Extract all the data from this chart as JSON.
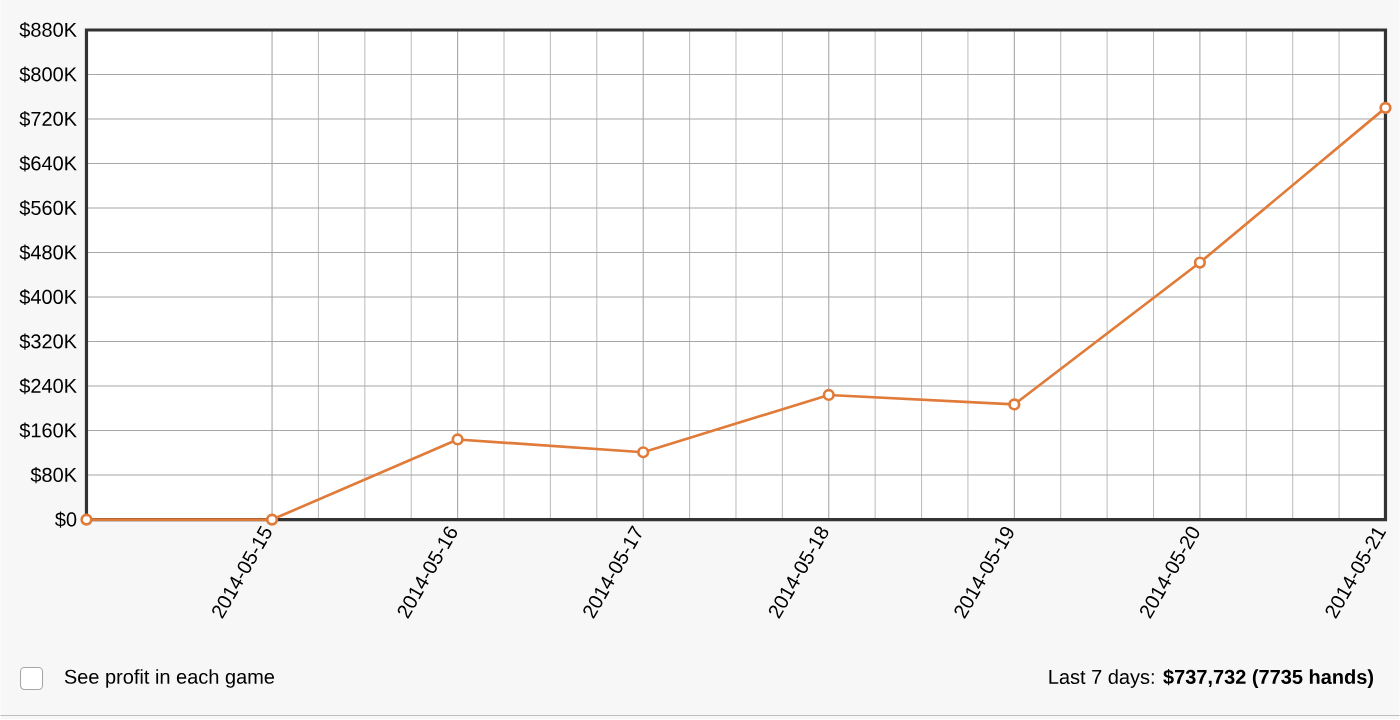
{
  "chart_data": {
    "type": "line",
    "x": [
      "2014-05-14",
      "2014-05-15",
      "2014-05-16",
      "2014-05-17",
      "2014-05-18",
      "2014-05-19",
      "2014-05-20",
      "2014-05-21"
    ],
    "series": [
      {
        "color": "#e07b39",
        "values": [
          0,
          0,
          144000,
          121000,
          224000,
          207000,
          462000,
          740000
        ]
      }
    ],
    "xlim": [
      "2014-05-14",
      "2014-05-21"
    ],
    "xticks": [
      "2014-05-15",
      "2014-05-16",
      "2014-05-17",
      "2014-05-18",
      "2014-05-19",
      "2014-05-20",
      "2014-05-21"
    ],
    "ylim": [
      0,
      880000
    ],
    "yticks": [
      {
        "value": 0,
        "label": "$0"
      },
      {
        "value": 80000,
        "label": "$80K"
      },
      {
        "value": 160000,
        "label": "$160K"
      },
      {
        "value": 240000,
        "label": "$240K"
      },
      {
        "value": 320000,
        "label": "$320K"
      },
      {
        "value": 400000,
        "label": "$400K"
      },
      {
        "value": 480000,
        "label": "$480K"
      },
      {
        "value": 560000,
        "label": "$560K"
      },
      {
        "value": 640000,
        "label": "$640K"
      },
      {
        "value": 720000,
        "label": "$720K"
      },
      {
        "value": 800000,
        "label": "$800K"
      },
      {
        "value": 880000,
        "label": "$880K"
      }
    ],
    "grid": true,
    "marker": "circle",
    "line_style": "solid",
    "annotations": [
      "See profit in each game",
      "Last 7 days: **$737,732 (7735 hands)**"
    ]
  }
}
